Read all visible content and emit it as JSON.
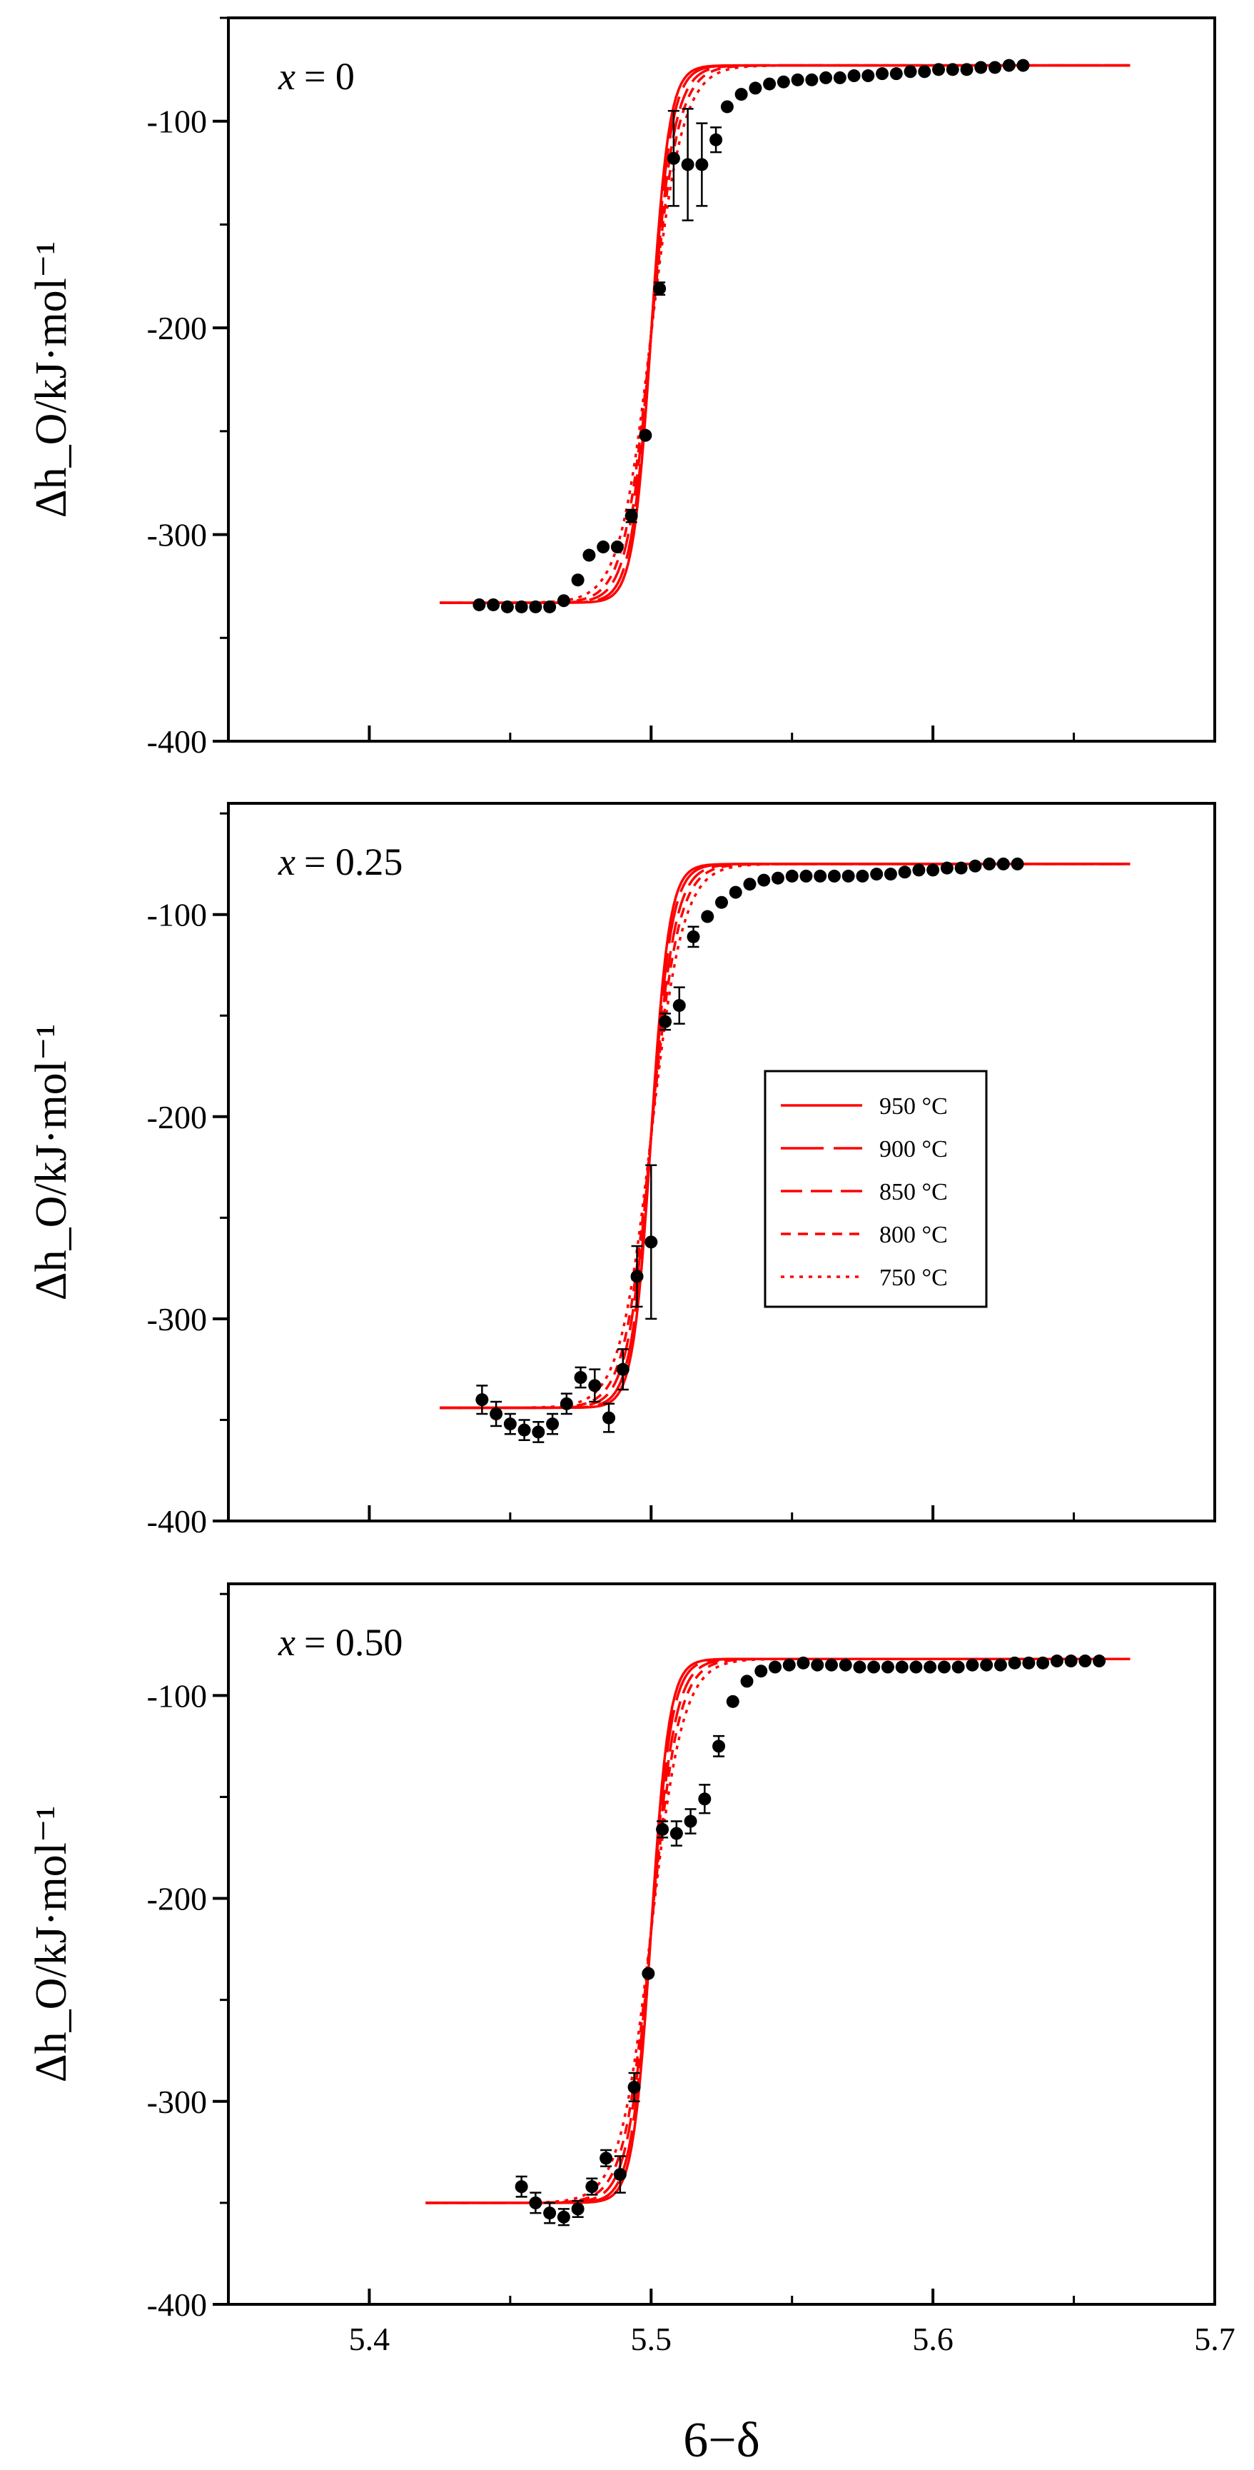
{
  "chart_data": {
    "type": "scatter",
    "xlabel": "6−δ",
    "ylabel": "Δh_O/kJ·mol⁻¹",
    "xlim": [
      5.35,
      5.7
    ],
    "xticks": [
      5.4,
      5.5,
      5.6,
      5.7
    ],
    "xtick_labels": [
      "5.4",
      "5.5",
      "5.6",
      "5.7"
    ],
    "legend": {
      "location": "center-right of middle panel",
      "entries": [
        {
          "label": "950 °C",
          "style": "solid"
        },
        {
          "label": "900 °C",
          "style": "long-dash"
        },
        {
          "label": "850 °C",
          "style": "dash"
        },
        {
          "label": "800 °C",
          "style": "short-dash"
        },
        {
          "label": "750 °C",
          "style": "dot"
        }
      ]
    },
    "colors": {
      "model_lines": "#ff0000",
      "experimental_points": "#000000"
    },
    "panels": [
      {
        "title_var": "x",
        "title_value": "= 0",
        "ylim": [
          -400,
          -50
        ],
        "yticks": [
          -100,
          -200,
          -300,
          -400
        ],
        "ytick_labels": [
          "-100",
          "-200",
          "-300",
          "-400"
        ],
        "model_curves": {
          "x_start": 5.425,
          "x_end": 5.67,
          "center": 5.5,
          "low_plateau": -333,
          "high_plateau": -73,
          "widths": [
            0.0032,
            0.0036,
            0.0042,
            0.0048,
            0.0056
          ]
        },
        "experimental": [
          {
            "x": 5.439,
            "y": -334
          },
          {
            "x": 5.444,
            "y": -334
          },
          {
            "x": 5.449,
            "y": -335
          },
          {
            "x": 5.454,
            "y": -335
          },
          {
            "x": 5.459,
            "y": -335
          },
          {
            "x": 5.464,
            "y": -335
          },
          {
            "x": 5.469,
            "y": -332
          },
          {
            "x": 5.474,
            "y": -322
          },
          {
            "x": 5.478,
            "y": -310
          },
          {
            "x": 5.483,
            "y": -306
          },
          {
            "x": 5.488,
            "y": -306
          },
          {
            "x": 5.493,
            "y": -291,
            "err": 3
          },
          {
            "x": 5.498,
            "y": -252
          },
          {
            "x": 5.503,
            "y": -181,
            "err": 3
          },
          {
            "x": 5.508,
            "y": -118,
            "err": 23
          },
          {
            "x": 5.513,
            "y": -121,
            "err": 27
          },
          {
            "x": 5.518,
            "y": -121,
            "err": 20
          },
          {
            "x": 5.523,
            "y": -109,
            "err": 6
          },
          {
            "x": 5.527,
            "y": -93
          },
          {
            "x": 5.532,
            "y": -87
          },
          {
            "x": 5.537,
            "y": -84
          },
          {
            "x": 5.542,
            "y": -82
          },
          {
            "x": 5.547,
            "y": -81
          },
          {
            "x": 5.552,
            "y": -80
          },
          {
            "x": 5.557,
            "y": -80
          },
          {
            "x": 5.562,
            "y": -79
          },
          {
            "x": 5.567,
            "y": -79
          },
          {
            "x": 5.572,
            "y": -78
          },
          {
            "x": 5.577,
            "y": -78
          },
          {
            "x": 5.582,
            "y": -77
          },
          {
            "x": 5.587,
            "y": -77
          },
          {
            "x": 5.592,
            "y": -76
          },
          {
            "x": 5.597,
            "y": -76
          },
          {
            "x": 5.602,
            "y": -75
          },
          {
            "x": 5.607,
            "y": -75
          },
          {
            "x": 5.612,
            "y": -75
          },
          {
            "x": 5.617,
            "y": -74
          },
          {
            "x": 5.622,
            "y": -74
          },
          {
            "x": 5.627,
            "y": -73
          },
          {
            "x": 5.632,
            "y": -73
          }
        ]
      },
      {
        "title_var": "x",
        "title_value": "= 0.25",
        "ylim": [
          -400,
          -45
        ],
        "yticks": [
          -100,
          -200,
          -300,
          -400
        ],
        "ytick_labels": [
          "-100",
          "-200",
          "-300",
          "-400"
        ],
        "model_curves": {
          "x_start": 5.425,
          "x_end": 5.67,
          "center": 5.5,
          "low_plateau": -344,
          "high_plateau": -75,
          "widths": [
            0.0032,
            0.0036,
            0.0042,
            0.0048,
            0.0056
          ]
        },
        "experimental": [
          {
            "x": 5.44,
            "y": -340,
            "err": 7
          },
          {
            "x": 5.445,
            "y": -347,
            "err": 6
          },
          {
            "x": 5.45,
            "y": -352,
            "err": 5
          },
          {
            "x": 5.455,
            "y": -355,
            "err": 5
          },
          {
            "x": 5.46,
            "y": -356,
            "err": 5
          },
          {
            "x": 5.465,
            "y": -352,
            "err": 5
          },
          {
            "x": 5.47,
            "y": -342,
            "err": 5
          },
          {
            "x": 5.475,
            "y": -329,
            "err": 5
          },
          {
            "x": 5.48,
            "y": -333,
            "err": 8
          },
          {
            "x": 5.485,
            "y": -349,
            "err": 7
          },
          {
            "x": 5.49,
            "y": -325,
            "err": 10
          },
          {
            "x": 5.495,
            "y": -279,
            "err": 15
          },
          {
            "x": 5.5,
            "y": -262,
            "err": 38
          },
          {
            "x": 5.505,
            "y": -153,
            "err": 4
          },
          {
            "x": 5.51,
            "y": -145,
            "err": 9
          },
          {
            "x": 5.515,
            "y": -111,
            "err": 5
          },
          {
            "x": 5.52,
            "y": -101
          },
          {
            "x": 5.525,
            "y": -94
          },
          {
            "x": 5.53,
            "y": -89
          },
          {
            "x": 5.535,
            "y": -85
          },
          {
            "x": 5.54,
            "y": -83
          },
          {
            "x": 5.545,
            "y": -82
          },
          {
            "x": 5.55,
            "y": -81
          },
          {
            "x": 5.555,
            "y": -81
          },
          {
            "x": 5.56,
            "y": -81
          },
          {
            "x": 5.565,
            "y": -81
          },
          {
            "x": 5.57,
            "y": -81
          },
          {
            "x": 5.575,
            "y": -81
          },
          {
            "x": 5.58,
            "y": -80
          },
          {
            "x": 5.585,
            "y": -80
          },
          {
            "x": 5.59,
            "y": -79
          },
          {
            "x": 5.595,
            "y": -78
          },
          {
            "x": 5.6,
            "y": -78
          },
          {
            "x": 5.605,
            "y": -77
          },
          {
            "x": 5.61,
            "y": -77
          },
          {
            "x": 5.615,
            "y": -76
          },
          {
            "x": 5.62,
            "y": -75
          },
          {
            "x": 5.625,
            "y": -75
          },
          {
            "x": 5.63,
            "y": -75
          }
        ]
      },
      {
        "title_var": "x",
        "title_value": "= 0.50",
        "ylim": [
          -400,
          -45
        ],
        "yticks": [
          -100,
          -200,
          -300,
          -400
        ],
        "ytick_labels": [
          "-100",
          "-200",
          "-300",
          "-400"
        ],
        "model_curves": {
          "x_start": 5.42,
          "x_end": 5.67,
          "center": 5.5,
          "low_plateau": -350,
          "high_plateau": -82,
          "widths": [
            0.0032,
            0.0036,
            0.0042,
            0.0048,
            0.0056
          ]
        },
        "experimental": [
          {
            "x": 5.454,
            "y": -342,
            "err": 5
          },
          {
            "x": 5.459,
            "y": -350,
            "err": 5
          },
          {
            "x": 5.464,
            "y": -355,
            "err": 5
          },
          {
            "x": 5.469,
            "y": -357,
            "err": 4
          },
          {
            "x": 5.474,
            "y": -353,
            "err": 4
          },
          {
            "x": 5.479,
            "y": -342,
            "err": 4
          },
          {
            "x": 5.484,
            "y": -328,
            "err": 4
          },
          {
            "x": 5.489,
            "y": -336,
            "err": 9
          },
          {
            "x": 5.494,
            "y": -293,
            "err": 7
          },
          {
            "x": 5.499,
            "y": -237
          },
          {
            "x": 5.504,
            "y": -166,
            "err": 4
          },
          {
            "x": 5.509,
            "y": -168,
            "err": 6
          },
          {
            "x": 5.514,
            "y": -162,
            "err": 6
          },
          {
            "x": 5.519,
            "y": -151,
            "err": 7
          },
          {
            "x": 5.524,
            "y": -125,
            "err": 5
          },
          {
            "x": 5.529,
            "y": -103
          },
          {
            "x": 5.534,
            "y": -93
          },
          {
            "x": 5.539,
            "y": -88
          },
          {
            "x": 5.544,
            "y": -86
          },
          {
            "x": 5.549,
            "y": -85
          },
          {
            "x": 5.554,
            "y": -84
          },
          {
            "x": 5.559,
            "y": -85
          },
          {
            "x": 5.564,
            "y": -85
          },
          {
            "x": 5.569,
            "y": -85
          },
          {
            "x": 5.574,
            "y": -86
          },
          {
            "x": 5.579,
            "y": -86
          },
          {
            "x": 5.584,
            "y": -86
          },
          {
            "x": 5.589,
            "y": -86
          },
          {
            "x": 5.594,
            "y": -86
          },
          {
            "x": 5.599,
            "y": -86
          },
          {
            "x": 5.604,
            "y": -86
          },
          {
            "x": 5.609,
            "y": -86
          },
          {
            "x": 5.614,
            "y": -85
          },
          {
            "x": 5.619,
            "y": -85
          },
          {
            "x": 5.624,
            "y": -85
          },
          {
            "x": 5.629,
            "y": -84
          },
          {
            "x": 5.634,
            "y": -84
          },
          {
            "x": 5.639,
            "y": -84
          },
          {
            "x": 5.644,
            "y": -83
          },
          {
            "x": 5.649,
            "y": -83
          },
          {
            "x": 5.654,
            "y": -83
          },
          {
            "x": 5.659,
            "y": -83
          }
        ]
      }
    ]
  }
}
